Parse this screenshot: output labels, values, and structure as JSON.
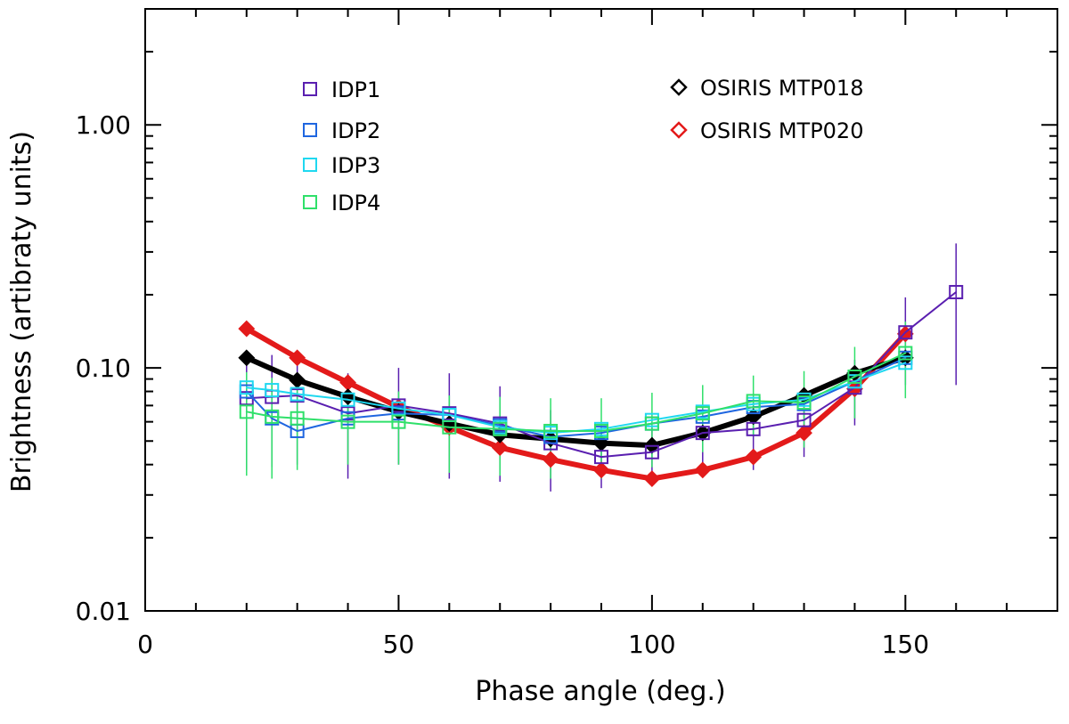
{
  "chart_data": {
    "type": "line",
    "title": "",
    "xlabel": "Phase angle (deg.)",
    "ylabel": "Brightness (artibraty units)",
    "xlim": [
      0,
      180
    ],
    "ylim": [
      0.01,
      3.0
    ],
    "yscale": "log",
    "x_ticks": [
      0,
      50,
      100,
      150
    ],
    "x_tick_labels": [
      "0",
      "50",
      "100",
      "150"
    ],
    "y_ticks": [
      0.01,
      0.1,
      1.0
    ],
    "y_tick_labels": [
      "0.01",
      "0.10",
      "1.00"
    ],
    "legend": [
      {
        "label": "IDP1",
        "color": "#5a1fb0",
        "marker": "square"
      },
      {
        "label": "IDP2",
        "color": "#1f66e0",
        "marker": "square"
      },
      {
        "label": "IDP3",
        "color": "#1fd8f0",
        "marker": "square"
      },
      {
        "label": "IDP4",
        "color": "#2fe06a",
        "marker": "square"
      },
      {
        "label": "OSIRIS MTP018",
        "color": "#000000",
        "marker": "diamond"
      },
      {
        "label": "OSIRIS MTP020",
        "color": "#e31a1a",
        "marker": "diamond"
      }
    ],
    "series": [
      {
        "name": "OSIRIS MTP020",
        "color": "#e31a1a",
        "marker": "diamond",
        "filled": true,
        "line_width": 6,
        "x": [
          20,
          30,
          40,
          50,
          60,
          70,
          80,
          90,
          100,
          110,
          120,
          130,
          140,
          150
        ],
        "y": [
          0.145,
          0.11,
          0.087,
          0.069,
          0.057,
          0.047,
          0.042,
          0.038,
          0.035,
          0.038,
          0.043,
          0.054,
          0.082,
          0.138
        ]
      },
      {
        "name": "OSIRIS MTP018",
        "color": "#000000",
        "marker": "diamond",
        "filled": true,
        "line_width": 6,
        "x": [
          20,
          30,
          40,
          50,
          60,
          70,
          80,
          90,
          100,
          110,
          120,
          130,
          140,
          150
        ],
        "y": [
          0.11,
          0.089,
          0.076,
          0.066,
          0.059,
          0.053,
          0.051,
          0.049,
          0.048,
          0.054,
          0.063,
          0.077,
          0.095,
          0.11
        ]
      },
      {
        "name": "IDP1",
        "color": "#5a1fb0",
        "marker": "square",
        "filled": false,
        "line_width": 2,
        "x": [
          20,
          25,
          30,
          40,
          50,
          60,
          70,
          80,
          90,
          100,
          110,
          120,
          130,
          140,
          150,
          160
        ],
        "y": [
          0.075,
          0.076,
          0.077,
          0.065,
          0.07,
          0.065,
          0.059,
          0.049,
          0.043,
          0.045,
          0.054,
          0.056,
          0.061,
          0.083,
          0.14,
          0.205
        ],
        "err": [
          0.037,
          0.037,
          0.037,
          0.03,
          0.03,
          0.03,
          0.025,
          0.018,
          0.011,
          0.012,
          0.015,
          0.018,
          0.018,
          0.025,
          0.055,
          0.12
        ]
      },
      {
        "name": "IDP2",
        "color": "#1f66e0",
        "marker": "square",
        "filled": false,
        "line_width": 2,
        "x": [
          20,
          25,
          30,
          40,
          50,
          60,
          70,
          80,
          90,
          100,
          110,
          120,
          130,
          140,
          150
        ],
        "y": [
          0.08,
          0.062,
          0.055,
          0.062,
          0.065,
          0.064,
          0.058,
          0.052,
          0.054,
          0.059,
          0.063,
          0.069,
          0.071,
          0.088,
          0.11
        ]
      },
      {
        "name": "IDP3",
        "color": "#1fd8f0",
        "marker": "square",
        "filled": false,
        "line_width": 2,
        "x": [
          20,
          25,
          30,
          40,
          50,
          60,
          70,
          80,
          90,
          100,
          110,
          120,
          130,
          140,
          150
        ],
        "y": [
          0.083,
          0.081,
          0.078,
          0.074,
          0.068,
          0.064,
          0.057,
          0.054,
          0.056,
          0.061,
          0.066,
          0.071,
          0.074,
          0.088,
          0.105
        ]
      },
      {
        "name": "IDP4",
        "color": "#2fe06a",
        "marker": "square",
        "filled": false,
        "line_width": 2,
        "x": [
          20,
          25,
          30,
          40,
          50,
          60,
          70,
          80,
          90,
          100,
          110,
          120,
          130,
          140,
          150
        ],
        "y": [
          0.066,
          0.063,
          0.062,
          0.06,
          0.06,
          0.057,
          0.056,
          0.055,
          0.055,
          0.059,
          0.065,
          0.073,
          0.072,
          0.092,
          0.115
        ],
        "err": [
          0.03,
          0.028,
          0.024,
          0.02,
          0.02,
          0.02,
          0.02,
          0.02,
          0.02,
          0.02,
          0.02,
          0.02,
          0.025,
          0.03,
          0.04
        ]
      }
    ]
  }
}
